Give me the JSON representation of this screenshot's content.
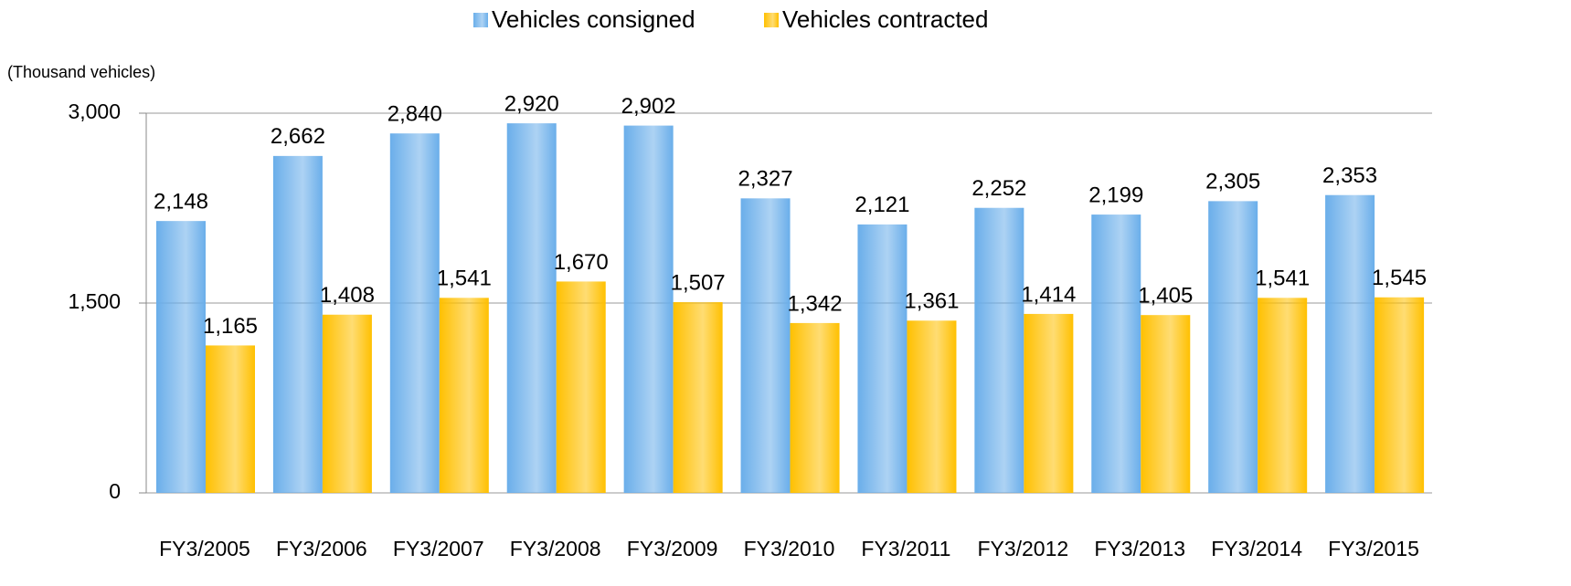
{
  "chart_data": {
    "type": "bar",
    "y_axis_label": "(Thousand vehicles)",
    "categories": [
      "FY3/2005",
      "FY3/2006",
      "FY3/2007",
      "FY3/2008",
      "FY3/2009",
      "FY3/2010",
      "FY3/2011",
      "FY3/2012",
      "FY3/2013",
      "FY3/2014",
      "FY3/2015"
    ],
    "series": [
      {
        "name": "Vehicles consigned",
        "color": "#6aaeea",
        "values": [
          2148,
          2662,
          2840,
          2920,
          2902,
          2327,
          2121,
          2252,
          2199,
          2305,
          2353
        ],
        "value_labels": [
          "2,148",
          "2,662",
          "2,840",
          "2,920",
          "2,902",
          "2,327",
          "2,121",
          "2,252",
          "2,199",
          "2,305",
          "2,353"
        ]
      },
      {
        "name": "Vehicles contracted",
        "color": "#ffc000",
        "values": [
          1165,
          1408,
          1541,
          1670,
          1507,
          1342,
          1361,
          1414,
          1405,
          1541,
          1545
        ],
        "value_labels": [
          "1,165",
          "1,408",
          "1,541",
          "1,670",
          "1,507",
          "1,342",
          "1,361",
          "1,414",
          "1,405",
          "1,541",
          "1,545"
        ]
      }
    ],
    "ylim": [
      0,
      3000
    ],
    "yticks": [
      0,
      {
        "value": 1500,
        "label": "1,500"
      },
      {
        "value": 3000,
        "label": "3,000"
      }
    ],
    "grid": true,
    "legend": "top"
  }
}
